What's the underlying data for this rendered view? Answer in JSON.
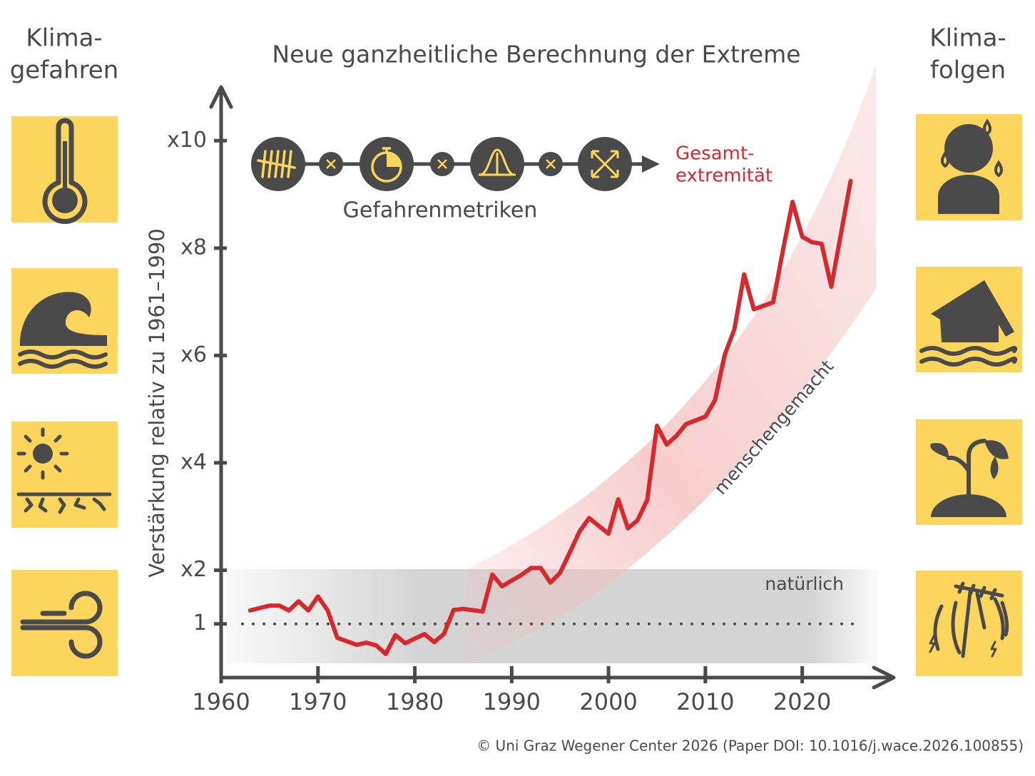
{
  "chart_data": {
    "type": "line",
    "title": "Neue ganzheitliche Berechnung der Extreme",
    "y_label": "Verstärkung relativ zu 1961–1990",
    "hazards_heading": [
      "Klima-",
      "gefahren"
    ],
    "impacts_heading": [
      "Klima-",
      "folgen"
    ],
    "metrics_label": "Gefahrenmetriken",
    "result_label": [
      "Gesamt-",
      "extremität"
    ],
    "anthropogenic_label": "menschengemacht",
    "natural_label": "natürlich",
    "credit": "© Uni Graz Wegener Center 2026 (Paper DOI: 10.1016/j.wace.2026.100855)",
    "x": [
      1963,
      1965,
      1966,
      1967,
      1968,
      1969,
      1970,
      1971,
      1972,
      1974,
      1975,
      1976,
      1977,
      1978,
      1979,
      1981,
      1982,
      1983,
      1984,
      1985,
      1987,
      1988,
      1989,
      1991,
      1992,
      1993,
      1994,
      1995,
      1996,
      1997,
      1998,
      2000,
      2001,
      2002,
      2003,
      2004,
      2005,
      2006,
      2007,
      2008,
      2010,
      2011,
      2012,
      2013,
      2014,
      2015,
      2017,
      2018,
      2019,
      2020,
      2021,
      2022,
      2023,
      2025
    ],
    "values": [
      1.25,
      1.34,
      1.34,
      1.25,
      1.42,
      1.25,
      1.51,
      1.25,
      0.74,
      0.61,
      0.65,
      0.6,
      0.44,
      0.79,
      0.64,
      0.81,
      0.66,
      0.81,
      1.26,
      1.28,
      1.23,
      1.92,
      1.7,
      1.91,
      2.04,
      2.04,
      1.77,
      1.95,
      2.33,
      2.72,
      2.97,
      2.68,
      3.32,
      2.78,
      2.93,
      3.31,
      4.69,
      4.34,
      4.5,
      4.72,
      4.86,
      5.17,
      6.01,
      6.49,
      7.51,
      6.86,
      6.99,
      7.95,
      8.86,
      8.21,
      8.11,
      8.08,
      7.28,
      9.25
    ],
    "color": "#d7282c",
    "xlim": [
      1960,
      2029.6
    ],
    "ylim": [
      0,
      11
    ],
    "xticks": [
      1960,
      1970,
      1980,
      1990,
      2000,
      2010,
      2020
    ],
    "yticks": [
      1,
      {
        "value": 2,
        "label": "x2"
      },
      {
        "value": 4,
        "label": "x4"
      },
      {
        "value": 6,
        "label": "x6"
      },
      {
        "value": 8,
        "label": "x8"
      },
      {
        "value": 10,
        "label": "x10"
      }
    ]
  }
}
